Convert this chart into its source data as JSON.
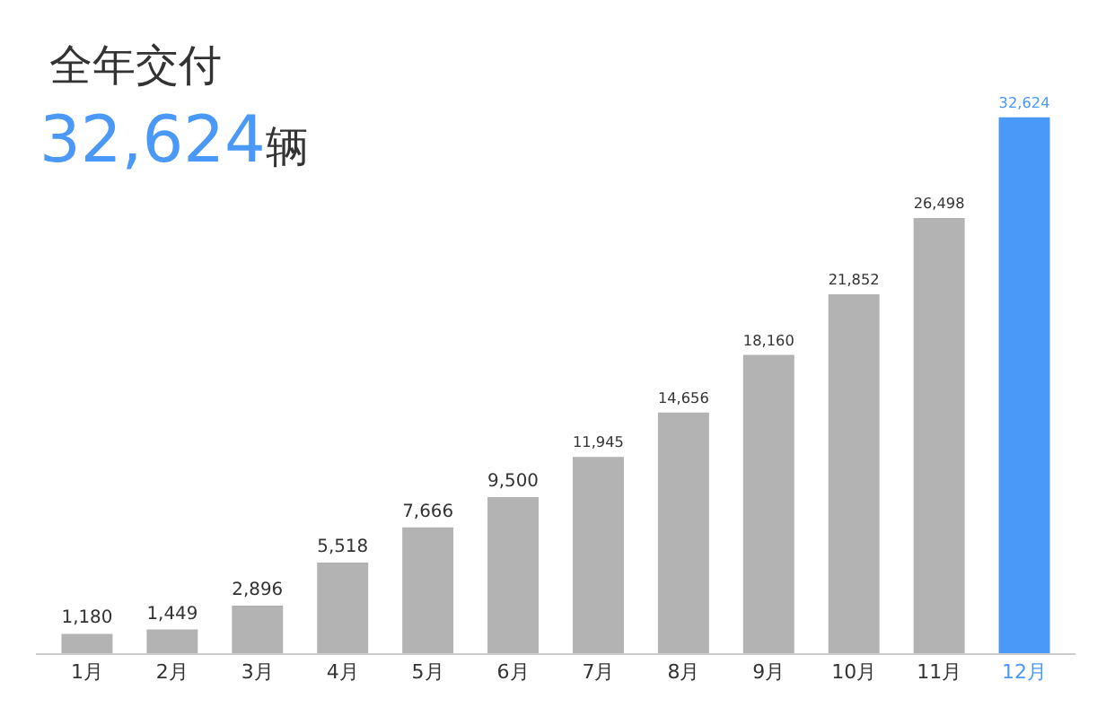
{
  "chart_data": {
    "type": "bar",
    "title": "全年交付",
    "subtitle": "32,624辆",
    "categories": [
      "1月",
      "2月",
      "3月",
      "4月",
      "5月",
      "6月",
      "7月",
      "8月",
      "9月",
      "10月",
      "11月",
      "12月"
    ],
    "values": [
      1180,
      1449,
      2896,
      5518,
      7666,
      9500,
      11945,
      14656,
      18160,
      21852,
      26498,
      32624
    ],
    "colors": [
      "#b3b3b3",
      "#b3b3b3",
      "#b3b3b3",
      "#b3b3b3",
      "#b3b3b3",
      "#b3b3b3",
      "#b3b3b3",
      "#b3b3b3",
      "#b3b3b3",
      "#b3b3b3",
      "#b3b3b3",
      "#4a98f7"
    ],
    "value_labels": [
      "1,180",
      "1,449",
      "2,896",
      "5,518",
      "7,666",
      "9,500",
      "11,945",
      "14,656",
      "18,160",
      "21,852",
      "26,498",
      "32,624"
    ],
    "legend": false
  }
}
